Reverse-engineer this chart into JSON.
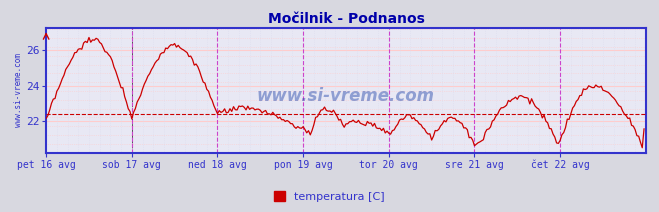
{
  "title": "Močilnik - Podnanos",
  "ylabel_rotated": "www.si-vreme.com",
  "x_labels": [
    "pet 16 avg",
    "sob 17 avg",
    "ned 18 avg",
    "pon 19 avg",
    "tor 20 avg",
    "sre 21 avg",
    "čet 22 avg"
  ],
  "y_ticks": [
    22,
    24,
    26
  ],
  "y_min": 20.2,
  "y_max": 27.3,
  "avg_line": 22.4,
  "line_color": "#cc0000",
  "avg_line_color": "#cc0000",
  "bg_color": "#d8d8e0",
  "plot_bg_color": "#e8e8f4",
  "grid_h_color": "#ffcccc",
  "grid_v_color": "#ddddee",
  "vline_color": "#cc44cc",
  "vline2_color": "#444444",
  "axis_color": "#3333cc",
  "title_color": "#0000aa",
  "label_color": "#3333cc",
  "watermark": "www.si-vreme.com",
  "legend_label": "temperatura [C]",
  "legend_color": "#cc0000",
  "num_points": 336,
  "days": 7,
  "points_per_day": 48
}
